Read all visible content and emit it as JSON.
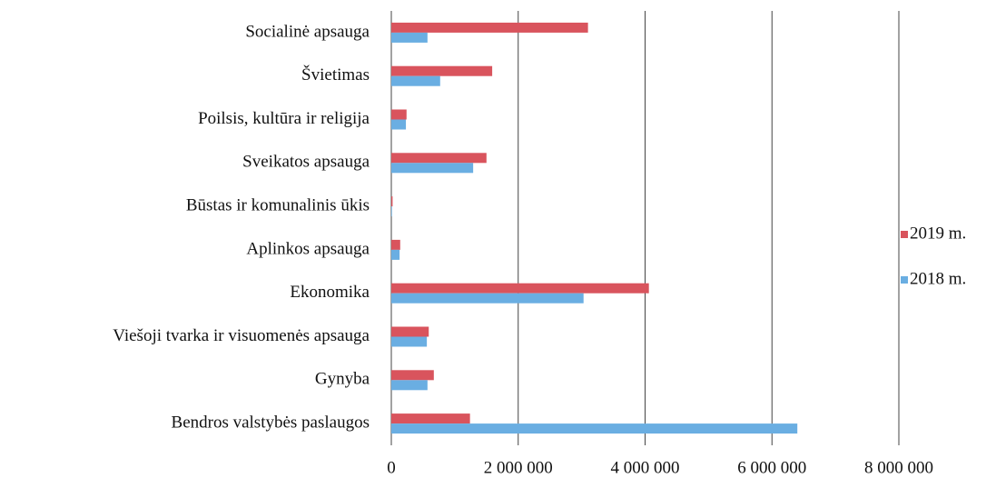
{
  "chart_data": {
    "type": "hbar",
    "categories": [
      "Socialinė apsauga",
      "Švietimas",
      "Poilsis, kultūra ir religija",
      "Sveikatos apsauga",
      "Būstas ir komunalinis ūkis",
      "Aplinkos apsauga",
      "Ekonomika",
      "Viešoji tvarka ir visuomenės apsauga",
      "Gynyba",
      "Bendros valstybės paslaugos"
    ],
    "series": [
      {
        "name": "2019 m.",
        "color": "#d9545d",
        "values": [
          3100000,
          1590000,
          240000,
          1500000,
          20000,
          140000,
          4060000,
          590000,
          670000,
          1240000
        ]
      },
      {
        "name": "2018 m.",
        "color": "#6aaee2",
        "values": [
          570000,
          770000,
          230000,
          1290000,
          10000,
          130000,
          3030000,
          560000,
          570000,
          6400000
        ]
      }
    ],
    "xlim": [
      0,
      8000000
    ],
    "xticks": [
      0,
      {
        "value": 2000000,
        "label": "2 000 000"
      },
      {
        "value": 4000000,
        "label": "4 000 000"
      },
      {
        "value": 6000000,
        "label": "6 000 000"
      },
      {
        "value": 8000000,
        "label": "8 000 000"
      }
    ],
    "grid": true,
    "legend": "right"
  }
}
